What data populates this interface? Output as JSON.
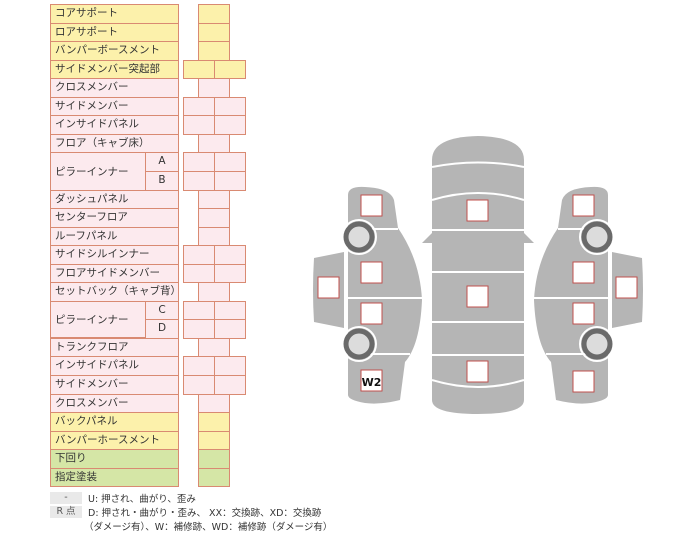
{
  "rows": [
    {
      "label": "コアサポート",
      "color": "yellow",
      "cells": 1
    },
    {
      "label": "ロアサポート",
      "color": "yellow",
      "cells": 1
    },
    {
      "label": "バンパーボースメント",
      "color": "yellow",
      "cells": 1
    },
    {
      "label": "サイドメンバー突起部",
      "color": "yellow",
      "cells": 2
    },
    {
      "label": "クロスメンバー",
      "color": "pink",
      "cells": 1
    },
    {
      "label": "サイドメンバー",
      "color": "pink",
      "cells": 2
    },
    {
      "label": "インサイドパネル",
      "color": "pink",
      "cells": 2
    },
    {
      "label": "フロア（キャブ床）",
      "color": "pink",
      "cells": 1
    },
    {
      "label": "ピラーインナー",
      "sub": "A",
      "color": "pink",
      "cells": 2
    },
    {
      "label": "",
      "sub": "B",
      "color": "pink",
      "cells": 2
    },
    {
      "label": "ダッシュパネル",
      "color": "pink",
      "cells": 1
    },
    {
      "label": "センターフロア",
      "color": "pink",
      "cells": 1
    },
    {
      "label": "ルーフパネル",
      "color": "pink",
      "cells": 1
    },
    {
      "label": "サイドシルインナー",
      "color": "pink",
      "cells": 2
    },
    {
      "label": "フロアサイドメンバー",
      "color": "pink",
      "cells": 2
    },
    {
      "label": "セットバック（キャブ背）",
      "color": "pink",
      "cells": 1
    },
    {
      "label": "ピラーインナー",
      "sub": "C",
      "color": "pink",
      "cells": 2
    },
    {
      "label": "",
      "sub": "D",
      "color": "pink",
      "cells": 2
    },
    {
      "label": "トランクフロア",
      "color": "pink",
      "cells": 1
    },
    {
      "label": "インサイドパネル",
      "color": "pink",
      "cells": 2
    },
    {
      "label": "サイドメンバー",
      "color": "pink",
      "cells": 2
    },
    {
      "label": "クロスメンバー",
      "color": "pink",
      "cells": 1
    },
    {
      "label": "バックパネル",
      "color": "yellow",
      "cells": 1
    },
    {
      "label": "バンパーホースメント",
      "color": "yellow",
      "cells": 1
    },
    {
      "label": "下回り",
      "color": "green",
      "cells": 1
    },
    {
      "label": "指定塗装",
      "color": "green",
      "cells": 1
    }
  ],
  "legend": {
    "key1": "-",
    "text1": "U: 押され、曲がり、歪み",
    "key2": "R 点",
    "text2": "D: 押され・曲がり・歪み、 XX：交換跡、XD：交換跡",
    "text3": "（ダメージ有）、W：補修跡、WD：補修跡（ダメージ有）"
  },
  "diagram": {
    "mark_w2": "W2"
  },
  "colors": {
    "yellow": "#fcf1ab",
    "pink": "#fceaee",
    "green": "#d5e6a6",
    "border": "#d98a72",
    "body": "#b5b5b5"
  }
}
